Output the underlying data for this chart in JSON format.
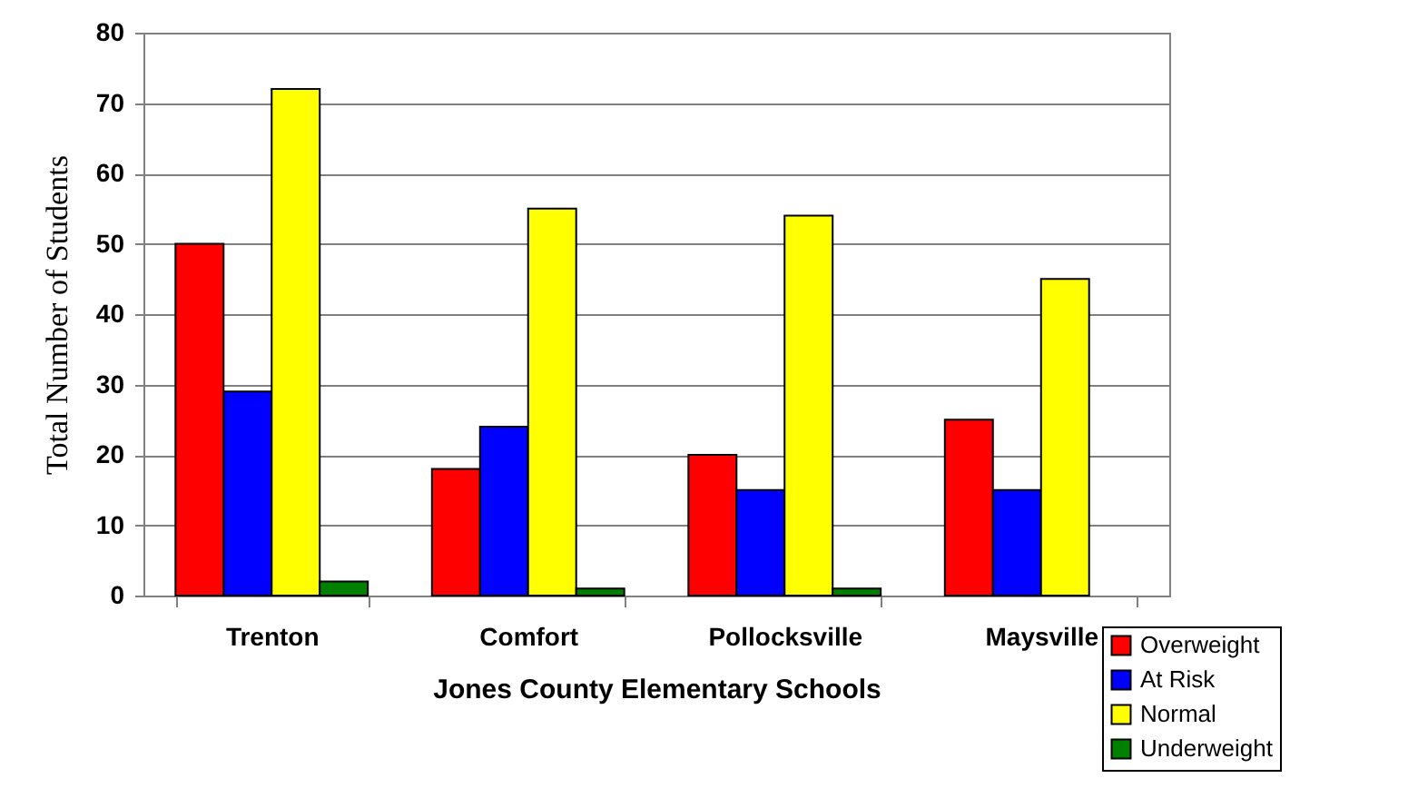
{
  "chart_data": {
    "type": "bar",
    "xlabel": "Jones County Elementary Schools",
    "ylabel": "Total Number of Students",
    "categories": [
      "Trenton",
      "Comfort",
      "Pollocksville",
      "Maysville"
    ],
    "series": [
      {
        "name": "Overweight",
        "color": "#ff0000",
        "values": [
          50,
          18,
          20,
          25
        ]
      },
      {
        "name": "At Risk",
        "color": "#0000ff",
        "values": [
          29,
          24,
          15,
          15
        ]
      },
      {
        "name": "Normal",
        "color": "#ffff00",
        "values": [
          72,
          55,
          54,
          45
        ]
      },
      {
        "name": "Underweight",
        "color": "#008000",
        "values": [
          2,
          1,
          1,
          null
        ]
      }
    ],
    "ylim": [
      0,
      80
    ],
    "yticks": [
      0,
      10,
      20,
      30,
      40,
      50,
      60,
      70,
      80
    ],
    "grid": "y",
    "legend": "bottom right"
  }
}
